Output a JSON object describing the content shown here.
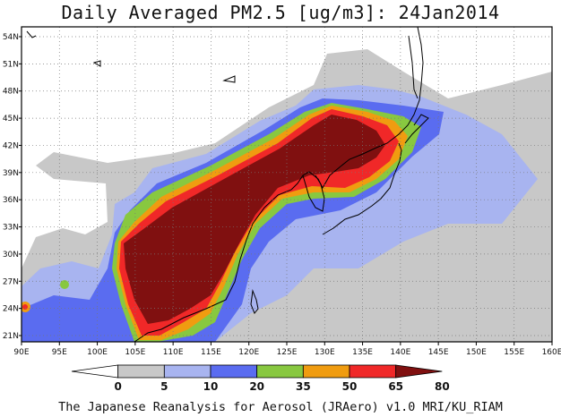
{
  "title": "Daily Averaged PM2.5 [ug/m3]: 24Jan2014",
  "credit": "The Japanese Reanalysis for Aerosol (JRAero) v1.0 MRI/KU_RIAM",
  "lon_labels": [
    "90E",
    "95E",
    "100E",
    "105E",
    "110E",
    "115E",
    "120E",
    "125E",
    "130E",
    "135E",
    "140E",
    "145E",
    "150E",
    "155E",
    "160E"
  ],
  "lat_labels": [
    "54N",
    "51N",
    "48N",
    "45N",
    "42N",
    "39N",
    "36N",
    "33N",
    "30N",
    "27N",
    "24N",
    "21N"
  ],
  "colorbar": {
    "labels": [
      "0",
      "5",
      "10",
      "20",
      "35",
      "50",
      "65",
      "80"
    ],
    "colors": [
      "#ffffff",
      "#c8c8c8",
      "#a8b4f0",
      "#5a6cf0",
      "#88c840",
      "#f09c10",
      "#f02828",
      "#801010"
    ]
  }
}
